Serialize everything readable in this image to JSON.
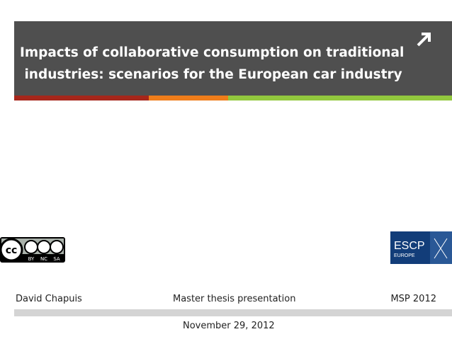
{
  "title": {
    "lines": [
      "Impacts of collaborative consumption on traditional",
      " industries: scenarios for the European car industry"
    ]
  },
  "license_badge": {
    "parts": [
      "BY",
      "NC",
      "SA"
    ]
  },
  "school_logo": {
    "name": "ESCP",
    "region": "EUROPE"
  },
  "footer": {
    "author": "David Chapuis",
    "subject": "Master thesis presentation",
    "program": "MSP 2012",
    "date": "November 29, 2012"
  }
}
